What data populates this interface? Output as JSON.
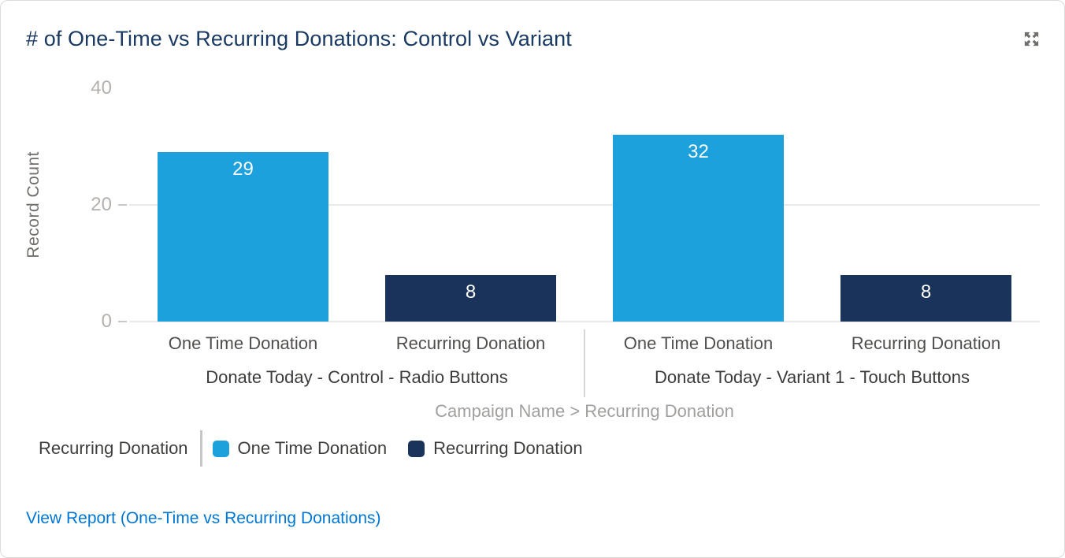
{
  "header": {
    "title": "# of One-Time vs Recurring Donations: Control vs Variant"
  },
  "icons": {
    "expand": "expand-arrows-icon"
  },
  "chart_data": {
    "type": "bar",
    "title": "# of One-Time vs Recurring Donations: Control vs Variant",
    "ylabel": "Record Count",
    "xlabel": "Campaign Name > Recurring Donation",
    "ylim": [
      0,
      40
    ],
    "yticks": [
      0,
      20,
      40
    ],
    "gridlines": [
      0,
      20
    ],
    "legend_position": "bottom-left",
    "legend_title": "Recurring Donation",
    "categories": [
      "Donate Today - Control - Radio Buttons",
      "Donate Today - Variant 1 - Touch Buttons"
    ],
    "series": [
      {
        "name": "One Time Donation",
        "color": "#1CA1DC",
        "values": [
          29,
          32
        ]
      },
      {
        "name": "Recurring Donation",
        "color": "#19335A",
        "values": [
          8,
          8
        ]
      }
    ]
  },
  "legend": {
    "title": "Recurring Donation"
  },
  "footer": {
    "link_label": "View Report (One-Time vs Recurring Donations)"
  },
  "colors": {
    "title_text": "#1A3A64",
    "link_blue": "#0176D3",
    "axis_text": "#B3B0AE",
    "muted_text": "#A2A09E",
    "bar_one_time": "#1CA1DC",
    "bar_recurring": "#19335A"
  }
}
